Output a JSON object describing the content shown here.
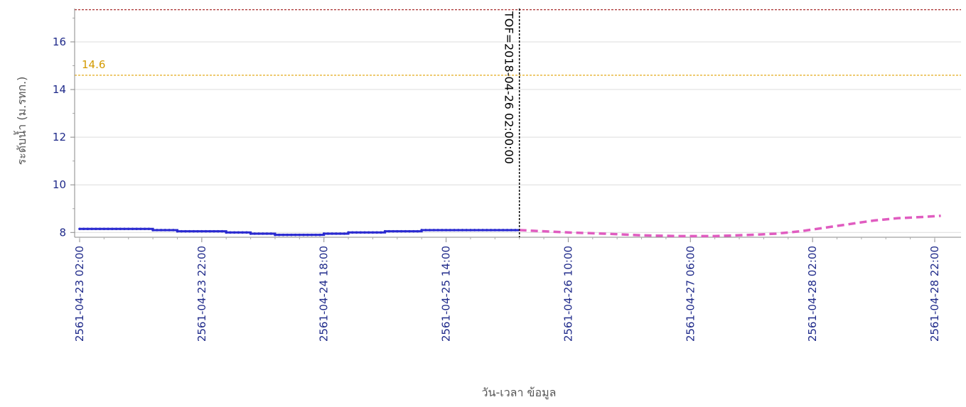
{
  "chart_data": {
    "type": "line",
    "xlabel": "วัน-เวลา ข้อมูล",
    "ylabel": "ระดับน้ำ (ม.รทก.)",
    "ylim": [
      7.8,
      17.4
    ],
    "xlim": [
      "2561-04-23 02:00",
      "2561-04-28 23:00"
    ],
    "yticks": [
      8,
      10,
      12,
      14,
      16
    ],
    "xticks": [
      "2561-04-23 02:00",
      "2561-04-23 22:00",
      "2561-04-24 18:00",
      "2561-04-25 14:00",
      "2561-04-26 10:00",
      "2561-04-27 06:00",
      "2561-04-28 02:00",
      "2561-04-28 22:00"
    ],
    "series": [
      {
        "points": [
          [
            "2561-04-23 02:00",
            8.15
          ],
          [
            "2561-04-23 04:00",
            8.15
          ],
          [
            "2561-04-23 06:00",
            8.15
          ],
          [
            "2561-04-23 08:00",
            8.15
          ],
          [
            "2561-04-23 10:00",
            8.15
          ],
          [
            "2561-04-23 12:00",
            8.15
          ],
          [
            "2561-04-23 14:00",
            8.1
          ],
          [
            "2561-04-23 16:00",
            8.1
          ],
          [
            "2561-04-23 18:00",
            8.05
          ],
          [
            "2561-04-23 20:00",
            8.05
          ],
          [
            "2561-04-23 22:00",
            8.05
          ],
          [
            "2561-04-24 00:00",
            8.05
          ],
          [
            "2561-04-24 02:00",
            8.0
          ],
          [
            "2561-04-24 04:00",
            8.0
          ],
          [
            "2561-04-24 06:00",
            7.95
          ],
          [
            "2561-04-24 08:00",
            7.95
          ],
          [
            "2561-04-24 10:00",
            7.9
          ],
          [
            "2561-04-24 12:00",
            7.9
          ],
          [
            "2561-04-24 14:00",
            7.9
          ],
          [
            "2561-04-24 16:00",
            7.9
          ],
          [
            "2561-04-24 18:00",
            7.95
          ],
          [
            "2561-04-24 20:00",
            7.95
          ],
          [
            "2561-04-24 22:00",
            8.0
          ],
          [
            "2561-04-25 00:00",
            8.0
          ],
          [
            "2561-04-25 02:00",
            8.0
          ],
          [
            "2561-04-25 04:00",
            8.05
          ],
          [
            "2561-04-25 06:00",
            8.05
          ],
          [
            "2561-04-25 08:00",
            8.05
          ],
          [
            "2561-04-25 10:00",
            8.1
          ],
          [
            "2561-04-25 12:00",
            8.1
          ],
          [
            "2561-04-25 14:00",
            8.1
          ],
          [
            "2561-04-25 16:00",
            8.1
          ],
          [
            "2561-04-25 18:00",
            8.1
          ],
          [
            "2561-04-25 20:00",
            8.1
          ],
          [
            "2561-04-25 22:00",
            8.1
          ],
          [
            "2561-04-26 00:00",
            8.1
          ],
          [
            "2561-04-26 02:00",
            8.1
          ]
        ],
        "color": "#2a2ad0",
        "style": "solid-with-markers"
      },
      {
        "points": [
          [
            "2561-04-26 02:00",
            8.1
          ],
          [
            "2561-04-26 06:00",
            8.05
          ],
          [
            "2561-04-26 10:00",
            8.0
          ],
          [
            "2561-04-26 16:00",
            7.95
          ],
          [
            "2561-04-26 22:00",
            7.88
          ],
          [
            "2561-04-27 04:00",
            7.85
          ],
          [
            "2561-04-27 10:00",
            7.85
          ],
          [
            "2561-04-27 16:00",
            7.9
          ],
          [
            "2561-04-27 20:00",
            7.95
          ],
          [
            "2561-04-28 00:00",
            8.05
          ],
          [
            "2561-04-28 04:00",
            8.2
          ],
          [
            "2561-04-28 08:00",
            8.35
          ],
          [
            "2561-04-28 12:00",
            8.5
          ],
          [
            "2561-04-28 16:00",
            8.6
          ],
          [
            "2561-04-28 20:00",
            8.65
          ],
          [
            "2561-04-28 23:00",
            8.7
          ]
        ],
        "color": "#e05cc0",
        "style": "dashed"
      }
    ],
    "reference_lines": [
      {
        "value": 17.35,
        "color": "#a01818",
        "style": "dashed"
      },
      {
        "value": 14.6,
        "label": "14.6",
        "color": "#e0a000",
        "style": "dashed"
      }
    ],
    "vertical_marker": {
      "x": "2561-04-26 02:00",
      "label": "TOF=2018-04-26 02:00:00",
      "color": "#000000",
      "style": "dashed"
    },
    "grid": {
      "horizontal": true,
      "vertical": false
    }
  }
}
